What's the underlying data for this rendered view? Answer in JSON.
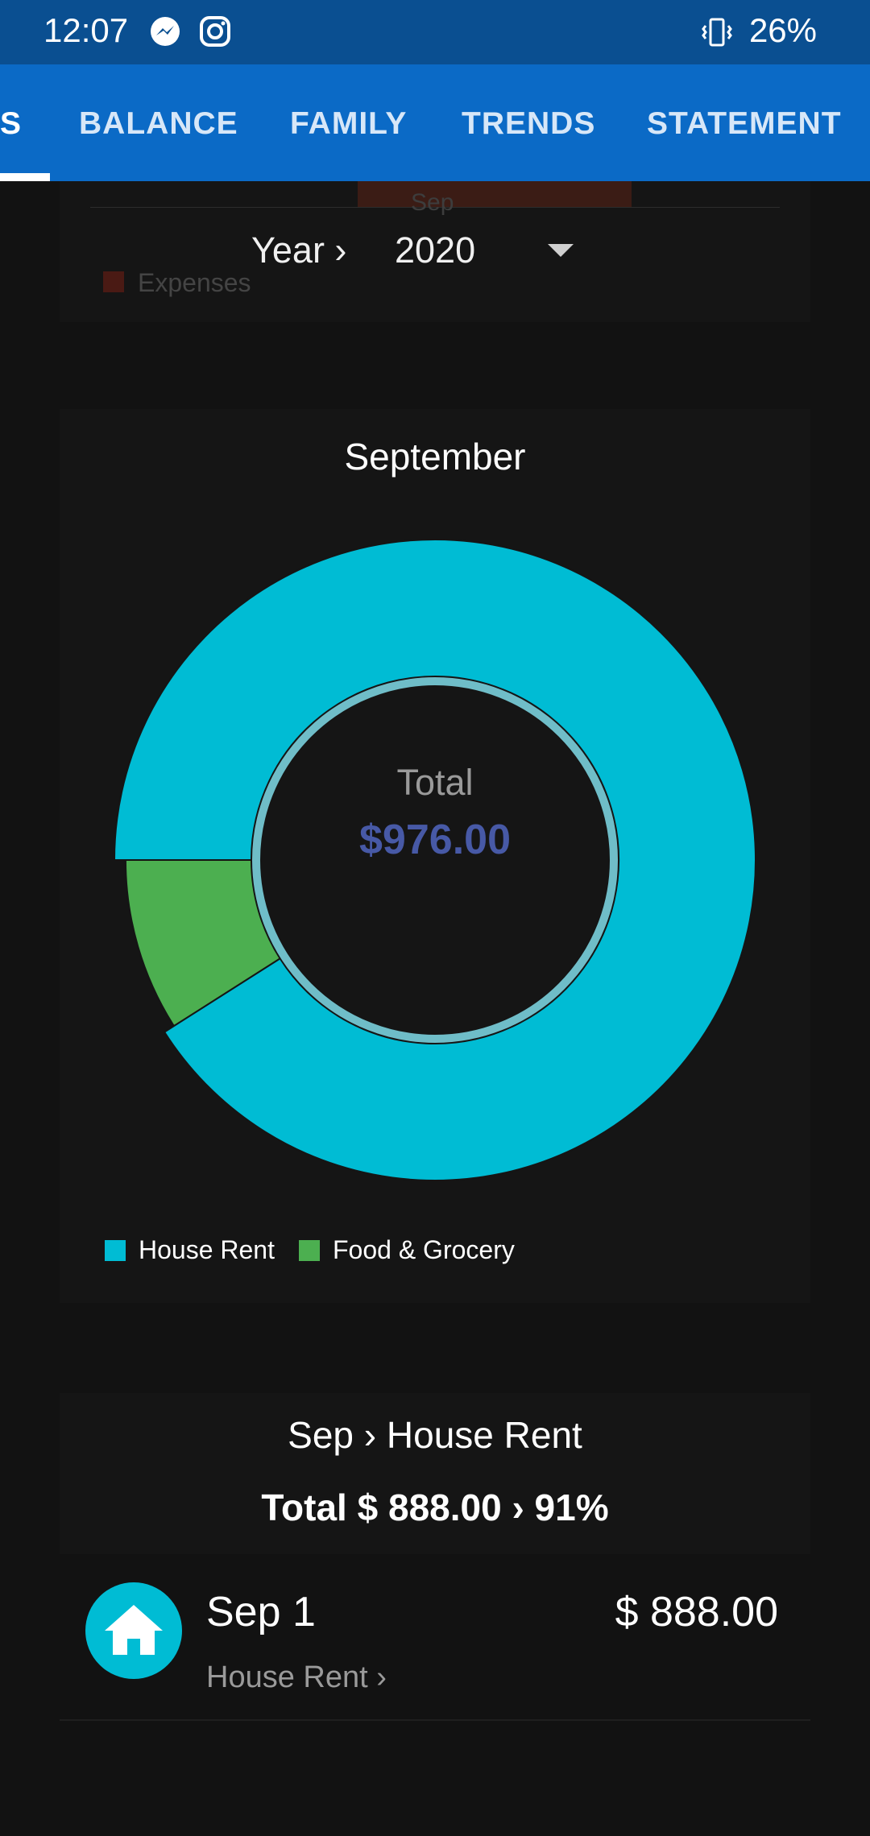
{
  "status_bar": {
    "time": "12:07",
    "battery": "26%"
  },
  "tabs": [
    {
      "label": "S"
    },
    {
      "label": "BALANCE"
    },
    {
      "label": "FAMILY"
    },
    {
      "label": "TRENDS"
    },
    {
      "label": "STATEMENT"
    }
  ],
  "top_chart": {
    "category_label": "Sep",
    "legend_label": "Expenses"
  },
  "year_selector": {
    "label": "Year ›",
    "value": "2020"
  },
  "pie_card": {
    "title": "September",
    "center_label": "Total",
    "center_value": "$976.00"
  },
  "chart_data": {
    "type": "pie",
    "title": "September",
    "categories": [
      "House Rent",
      "Food & Grocery"
    ],
    "values": [
      888,
      88
    ],
    "colors": [
      "#00bcd4",
      "#4caf50"
    ],
    "total": 976,
    "legend_position": "bottom-left"
  },
  "detail": {
    "title": "Sep › House Rent",
    "total": "Total $ 888.00 › 91%"
  },
  "transactions": [
    {
      "date": "Sep 1",
      "category": "House Rent ›",
      "amount": "$ 888.00",
      "icon": "house-icon"
    }
  ]
}
